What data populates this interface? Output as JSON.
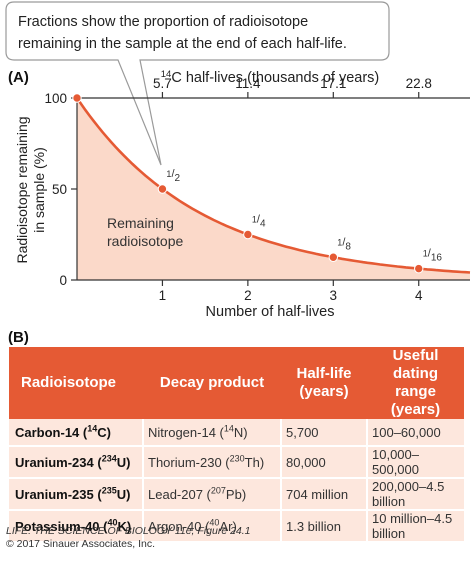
{
  "callout": {
    "line1": "Fractions show the proportion of radioisotope",
    "line2": "remaining in the sample at the end of each half-life."
  },
  "panel_a_label": "(A)",
  "panel_b_label": "(B)",
  "colors": {
    "curve": "#e55a34",
    "fill": "#fbd9c9",
    "header_bg": "#e55a34",
    "row_bg": "#fde7dd"
  },
  "chart_data": {
    "type": "area",
    "top_axis": {
      "label": "14C half-lives (thousands of years)",
      "label_sup": "14",
      "label_rest": "C half-lives (thousands of years)",
      "ticks": [
        "5.7",
        "11.4",
        "17.1",
        "22.8"
      ]
    },
    "xlabel": "Number of half-lives",
    "ylabel": [
      "Radioisotope remaining",
      "in sample (%)"
    ],
    "xlim": [
      0,
      4.6
    ],
    "ylim": [
      0,
      100
    ],
    "xticks": [
      "1",
      "2",
      "3",
      "4"
    ],
    "yticks": [
      "0",
      "50",
      "100"
    ],
    "area_label": [
      "Remaining",
      "radioisotope"
    ],
    "points": [
      {
        "x": 0,
        "y": 100,
        "label": ""
      },
      {
        "x": 1,
        "y": 50,
        "label": "1/2"
      },
      {
        "x": 2,
        "y": 25,
        "label": "1/4"
      },
      {
        "x": 3,
        "y": 12.5,
        "label": "1/8"
      },
      {
        "x": 4,
        "y": 6.25,
        "label": "1/16"
      }
    ]
  },
  "table": {
    "headers": [
      "Radioisotope",
      "Decay product",
      "Half-life (years)",
      "Useful dating range (years)"
    ],
    "rows": [
      {
        "iso_pre": "Carbon-14 (",
        "iso_sup": "14",
        "iso_post": "C)",
        "prod_pre": "Nitrogen-14 (",
        "prod_sup": "14",
        "prod_post": "N)",
        "half_life": "5,700",
        "range": "100–60,000"
      },
      {
        "iso_pre": "Uranium-234 (",
        "iso_sup": "234",
        "iso_post": "U)",
        "prod_pre": "Thorium-230 (",
        "prod_sup": "230",
        "prod_post": "Th)",
        "half_life": "80,000",
        "range": "10,000–500,000"
      },
      {
        "iso_pre": "Uranium-235 (",
        "iso_sup": "235",
        "iso_post": "U)",
        "prod_pre": "Lead-207 (",
        "prod_sup": "207",
        "prod_post": "Pb)",
        "half_life": "704 million",
        "range": "200,000–4.5 billion"
      },
      {
        "iso_pre": "Potassium-40 (",
        "iso_sup": "40",
        "iso_post": "K)",
        "prod_pre": "Argon-40 (",
        "prod_sup": "40",
        "prod_post": "Ar)",
        "half_life": "1.3 billion",
        "range": "10 million–4.5 billion"
      }
    ]
  },
  "credit": {
    "line1": "LIFE: THE SCIENCE OF BIOLOGY 11e, Figure 24.1",
    "line2": "© 2017 Sinauer Associates, Inc."
  }
}
